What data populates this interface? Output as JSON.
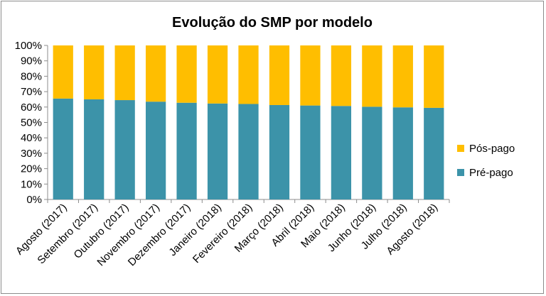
{
  "chart_data": {
    "type": "bar",
    "stacked": true,
    "percent": true,
    "title": "Evolução do SMP por modelo",
    "categories": [
      "Agosto (2017)",
      "Setembro (2017)",
      "Outubro (2017)",
      "Novembro (2017)",
      "Dezembro (2017)",
      "Janeiro (2018)",
      "Fevereiro (2018)",
      "Março (2018)",
      "Abril (2018)",
      "Maio (2018)",
      "Junho (2018)",
      "Julho (2018)",
      "Agosto (2018)"
    ],
    "series": [
      {
        "name": "Pré-pago",
        "color": "#3c93a9",
        "values": [
          65.5,
          65.0,
          64.5,
          63.5,
          62.8,
          62.3,
          62.0,
          61.3,
          61.0,
          60.7,
          60.2,
          59.8,
          59.5
        ]
      },
      {
        "name": "Pós-pago",
        "color": "#ffbe00",
        "values": [
          34.5,
          35.0,
          35.5,
          36.5,
          37.2,
          37.7,
          38.0,
          38.7,
          39.0,
          39.3,
          39.8,
          40.2,
          40.5
        ]
      }
    ],
    "yticks": [
      "0%",
      "10%",
      "20%",
      "30%",
      "40%",
      "50%",
      "60%",
      "70%",
      "80%",
      "90%",
      "100%"
    ],
    "ylim": [
      0,
      100
    ],
    "grid": false,
    "legend": {
      "position": "right",
      "order": [
        "Pós-pago",
        "Pré-pago"
      ]
    }
  }
}
